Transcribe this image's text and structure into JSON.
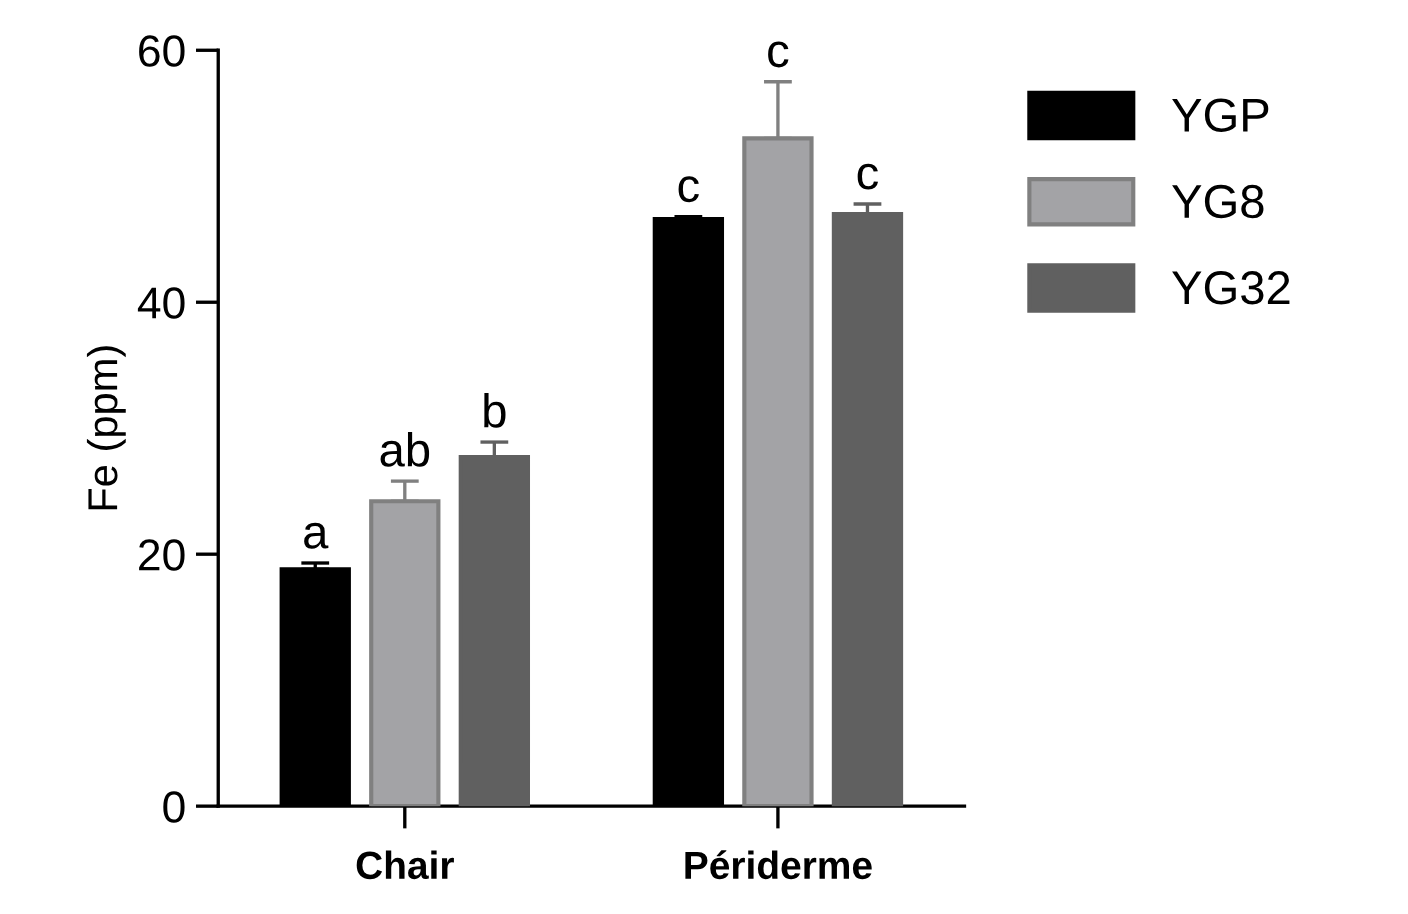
{
  "chart_data": {
    "type": "bar",
    "ylabel": "Fe (ppm)",
    "categories": [
      "Chair",
      "Périderme"
    ],
    "series": [
      {
        "name": "YGP",
        "color": "#000000",
        "values": [
          18.8,
          46.6
        ],
        "errors": [
          0.5,
          0.2
        ],
        "value_labels": [
          "a",
          "c"
        ]
      },
      {
        "name": "YG8",
        "color": "#a3a3a6",
        "values": [
          24.2,
          53.0
        ],
        "errors": [
          1.6,
          4.5
        ],
        "value_labels": [
          "ab",
          "c"
        ]
      },
      {
        "name": "YG32",
        "color": "#606060",
        "values": [
          27.7,
          47.0
        ],
        "errors": [
          1.2,
          0.8
        ],
        "value_labels": [
          "b",
          "c"
        ]
      }
    ],
    "ylim": [
      0,
      60
    ],
    "yticks": [
      0,
      20,
      40,
      60
    ],
    "grid": false,
    "legend": "right"
  }
}
